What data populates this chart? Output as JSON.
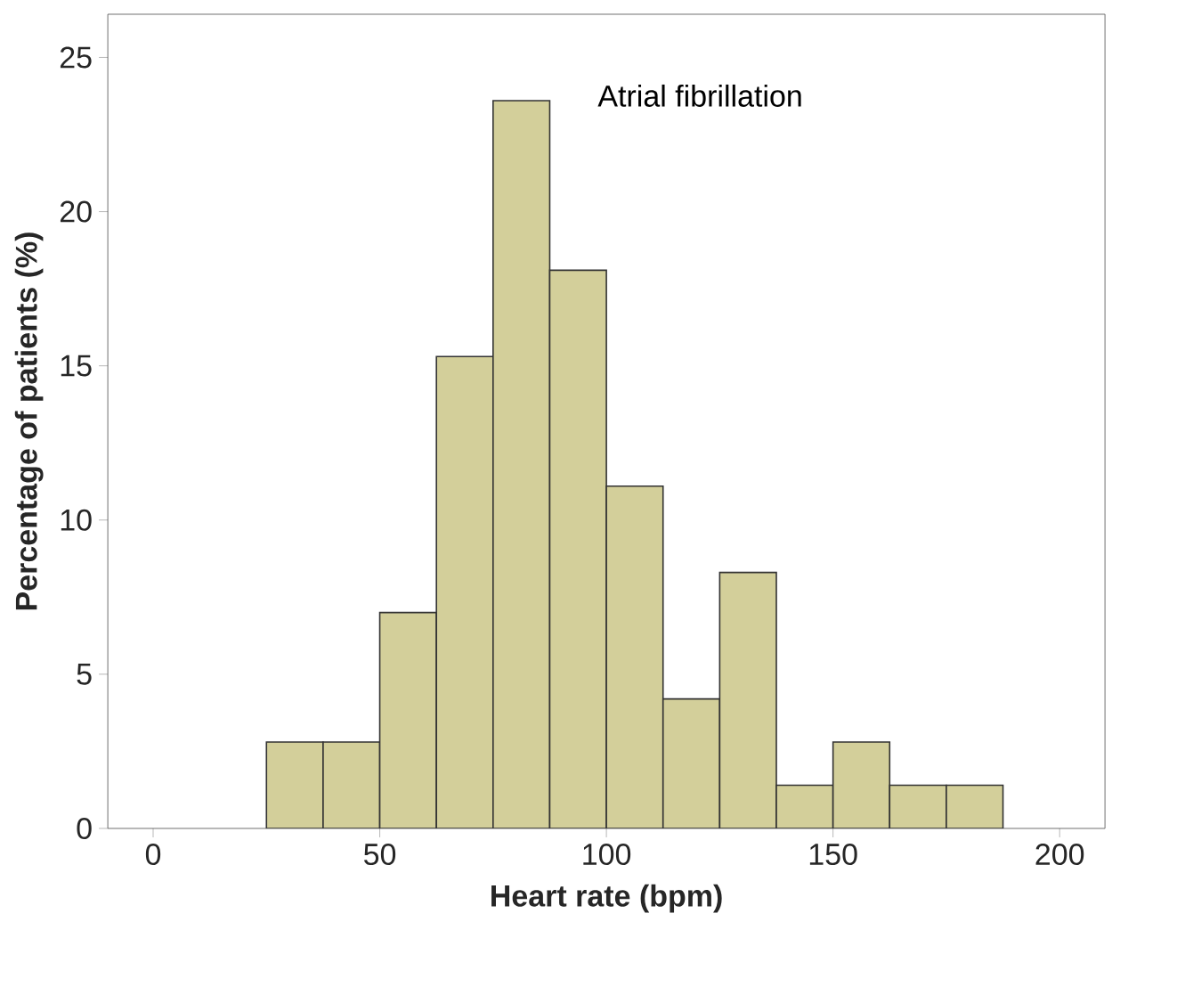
{
  "chart_data": {
    "type": "histogram",
    "xlabel": "Heart rate (bpm)",
    "ylabel": "Percentage of patients (%)",
    "annotations": [
      "Atrial fibrillation"
    ],
    "bins": [
      25,
      37.5,
      50,
      62.5,
      75,
      87.5,
      100,
      112.5,
      125,
      137.5,
      150,
      162.5,
      175,
      187.5
    ],
    "values": [
      2.8,
      2.8,
      7.0,
      15.3,
      23.6,
      18.1,
      11.1,
      4.2,
      8.3,
      1.4,
      2.8,
      1.4,
      1.4
    ],
    "color": "#d3cf9a",
    "xlim": [
      -10,
      210
    ],
    "ylim": [
      0,
      26.4
    ],
    "xticks": [
      0,
      50,
      100,
      150,
      200
    ],
    "yticks": [
      0,
      5,
      10,
      15,
      20,
      25
    ],
    "grid": false
  }
}
